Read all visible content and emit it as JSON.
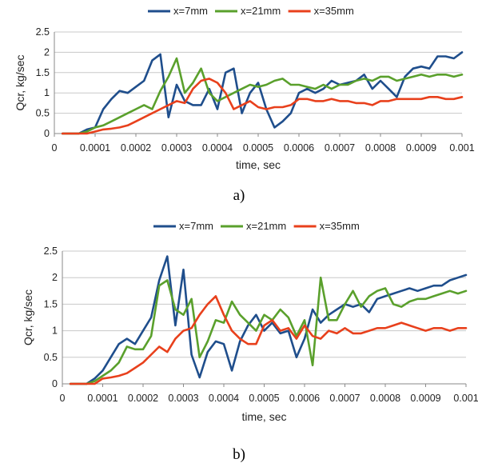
{
  "chart_data": [
    {
      "type": "line",
      "panel_label": "a)",
      "xlabel": "time, sec",
      "ylabel": "Qcr, kg/sec",
      "xlim": [
        0,
        0.001
      ],
      "ylim": [
        0,
        2.5
      ],
      "xticks": [
        "0",
        "0.0001",
        "0.0002",
        "0.0003",
        "0.0004",
        "0.0005",
        "0.0006",
        "0.0007",
        "0.0008",
        "0.0009",
        "0.001"
      ],
      "yticks": [
        "0",
        "0.5",
        "1",
        "1.5",
        "2",
        "2.5"
      ],
      "grid": "horizontal",
      "legend": "top",
      "series": [
        {
          "name": "x=7mm",
          "color": "#1f4e8c",
          "x": [
            2e-05,
            4e-05,
            6e-05,
            8e-05,
            0.0001,
            0.00012,
            0.00014,
            0.00016,
            0.00018,
            0.0002,
            0.00022,
            0.00024,
            0.00026,
            0.00028,
            0.0003,
            0.00032,
            0.00034,
            0.00036,
            0.00038,
            0.0004,
            0.00042,
            0.00044,
            0.00046,
            0.00048,
            0.0005,
            0.00052,
            0.00054,
            0.00056,
            0.00058,
            0.0006,
            0.00062,
            0.00064,
            0.00066,
            0.00068,
            0.0007,
            0.00072,
            0.00074,
            0.00076,
            0.00078,
            0.0008,
            0.00082,
            0.00084,
            0.00086,
            0.00088,
            0.0009,
            0.00092,
            0.00094,
            0.00096,
            0.00098,
            0.001
          ],
          "y": [
            0,
            0,
            0,
            0.1,
            0.15,
            0.6,
            0.85,
            1.05,
            1.0,
            1.15,
            1.3,
            1.8,
            1.95,
            0.4,
            1.2,
            0.8,
            0.7,
            0.7,
            1.1,
            0.6,
            1.5,
            1.6,
            0.5,
            1.0,
            1.25,
            0.6,
            0.15,
            0.3,
            0.5,
            1.0,
            1.1,
            1.0,
            1.1,
            1.3,
            1.2,
            1.25,
            1.3,
            1.45,
            1.1,
            1.3,
            1.1,
            0.9,
            1.4,
            1.6,
            1.65,
            1.6,
            1.9,
            1.9,
            1.85,
            2.0
          ]
        },
        {
          "name": "x=21mm",
          "color": "#5aa02c",
          "x": [
            2e-05,
            4e-05,
            6e-05,
            8e-05,
            0.0001,
            0.00012,
            0.00014,
            0.00016,
            0.00018,
            0.0002,
            0.00022,
            0.00024,
            0.00026,
            0.00028,
            0.0003,
            0.00032,
            0.00034,
            0.00036,
            0.00038,
            0.0004,
            0.00042,
            0.00044,
            0.00046,
            0.00048,
            0.0005,
            0.00052,
            0.00054,
            0.00056,
            0.00058,
            0.0006,
            0.00062,
            0.00064,
            0.00066,
            0.00068,
            0.0007,
            0.00072,
            0.00074,
            0.00076,
            0.00078,
            0.0008,
            0.00082,
            0.00084,
            0.00086,
            0.00088,
            0.0009,
            0.00092,
            0.00094,
            0.00096,
            0.00098,
            0.001
          ],
          "y": [
            0,
            0,
            0,
            0.05,
            0.15,
            0.2,
            0.3,
            0.4,
            0.5,
            0.6,
            0.7,
            0.6,
            1.05,
            1.4,
            1.85,
            1.0,
            1.25,
            1.6,
            1.0,
            0.8,
            0.9,
            1.0,
            1.1,
            1.2,
            1.15,
            1.2,
            1.3,
            1.35,
            1.2,
            1.2,
            1.15,
            1.1,
            1.2,
            1.1,
            1.2,
            1.2,
            1.3,
            1.35,
            1.3,
            1.4,
            1.4,
            1.3,
            1.35,
            1.4,
            1.45,
            1.4,
            1.45,
            1.45,
            1.4,
            1.45
          ]
        },
        {
          "name": "x=35mm",
          "color": "#e8401c",
          "x": [
            2e-05,
            4e-05,
            6e-05,
            8e-05,
            0.0001,
            0.00012,
            0.00014,
            0.00016,
            0.00018,
            0.0002,
            0.00022,
            0.00024,
            0.00026,
            0.00028,
            0.0003,
            0.00032,
            0.00034,
            0.00036,
            0.00038,
            0.0004,
            0.00042,
            0.00044,
            0.00046,
            0.00048,
            0.0005,
            0.00052,
            0.00054,
            0.00056,
            0.00058,
            0.0006,
            0.00062,
            0.00064,
            0.00066,
            0.00068,
            0.0007,
            0.00072,
            0.00074,
            0.00076,
            0.00078,
            0.0008,
            0.00082,
            0.00084,
            0.00086,
            0.00088,
            0.0009,
            0.00092,
            0.00094,
            0.00096,
            0.00098,
            0.001
          ],
          "y": [
            0,
            0,
            0,
            0,
            0.05,
            0.1,
            0.12,
            0.15,
            0.2,
            0.3,
            0.4,
            0.5,
            0.6,
            0.7,
            0.8,
            0.75,
            1.1,
            1.3,
            1.35,
            1.25,
            1.0,
            0.6,
            0.7,
            0.8,
            0.65,
            0.6,
            0.65,
            0.65,
            0.7,
            0.85,
            0.85,
            0.8,
            0.8,
            0.85,
            0.8,
            0.8,
            0.75,
            0.75,
            0.7,
            0.8,
            0.8,
            0.85,
            0.85,
            0.85,
            0.85,
            0.9,
            0.9,
            0.85,
            0.85,
            0.9
          ]
        }
      ]
    },
    {
      "type": "line",
      "panel_label": "b)",
      "xlabel": "time, sec",
      "ylabel": "Qcr, kg/sec",
      "xlim": [
        0,
        0.001
      ],
      "ylim": [
        0,
        2.5
      ],
      "xticks": [
        "0",
        "0.0001",
        "0.0002",
        "0.0003",
        "0.0004",
        "0.0005",
        "0.0006",
        "0.0007",
        "0.0008",
        "0.0009",
        "0.001"
      ],
      "yticks": [
        "0",
        "0.5",
        "1",
        "1.5",
        "2",
        "2.5"
      ],
      "grid": "horizontal",
      "legend": "top",
      "series": [
        {
          "name": "x=7mm",
          "color": "#1f4e8c",
          "x": [
            2e-05,
            4e-05,
            6e-05,
            8e-05,
            0.0001,
            0.00012,
            0.00014,
            0.00016,
            0.00018,
            0.0002,
            0.00022,
            0.00024,
            0.00026,
            0.00028,
            0.0003,
            0.00032,
            0.00034,
            0.00036,
            0.00038,
            0.0004,
            0.00042,
            0.00044,
            0.00046,
            0.00048,
            0.0005,
            0.00052,
            0.00054,
            0.00056,
            0.00058,
            0.0006,
            0.00062,
            0.00064,
            0.00066,
            0.00068,
            0.0007,
            0.00072,
            0.00074,
            0.00076,
            0.00078,
            0.0008,
            0.00082,
            0.00084,
            0.00086,
            0.00088,
            0.0009,
            0.00092,
            0.00094,
            0.00096,
            0.00098,
            0.001
          ],
          "y": [
            0,
            0,
            0,
            0.1,
            0.25,
            0.5,
            0.75,
            0.85,
            0.75,
            1.0,
            1.25,
            1.95,
            2.4,
            1.1,
            2.15,
            0.55,
            0.12,
            0.6,
            0.8,
            0.75,
            0.25,
            0.8,
            1.1,
            1.3,
            1.0,
            1.15,
            0.95,
            1.0,
            0.5,
            0.85,
            1.4,
            1.15,
            1.3,
            1.4,
            1.5,
            1.45,
            1.5,
            1.35,
            1.6,
            1.65,
            1.7,
            1.75,
            1.8,
            1.75,
            1.8,
            1.85,
            1.85,
            1.95,
            2.0,
            2.05
          ]
        },
        {
          "name": "x=21mm",
          "color": "#5aa02c",
          "x": [
            2e-05,
            4e-05,
            6e-05,
            8e-05,
            0.0001,
            0.00012,
            0.00014,
            0.00016,
            0.00018,
            0.0002,
            0.00022,
            0.00024,
            0.00026,
            0.00028,
            0.0003,
            0.00032,
            0.00034,
            0.00036,
            0.00038,
            0.0004,
            0.00042,
            0.00044,
            0.00046,
            0.00048,
            0.0005,
            0.00052,
            0.00054,
            0.00056,
            0.00058,
            0.0006,
            0.00062,
            0.00064,
            0.00066,
            0.00068,
            0.0007,
            0.00072,
            0.00074,
            0.00076,
            0.00078,
            0.0008,
            0.00082,
            0.00084,
            0.00086,
            0.00088,
            0.0009,
            0.00092,
            0.00094,
            0.00096,
            0.00098,
            0.001
          ],
          "y": [
            0,
            0,
            0,
            0.05,
            0.15,
            0.25,
            0.4,
            0.7,
            0.65,
            0.65,
            0.9,
            1.85,
            1.95,
            1.4,
            1.3,
            1.6,
            0.5,
            0.8,
            1.2,
            1.15,
            1.55,
            1.3,
            1.15,
            1.0,
            1.3,
            1.2,
            1.4,
            1.25,
            0.9,
            1.2,
            0.35,
            2.0,
            1.2,
            1.2,
            1.5,
            1.75,
            1.45,
            1.65,
            1.75,
            1.8,
            1.5,
            1.45,
            1.55,
            1.6,
            1.6,
            1.65,
            1.7,
            1.75,
            1.7,
            1.75
          ]
        },
        {
          "name": "x=35mm",
          "color": "#e8401c",
          "x": [
            2e-05,
            4e-05,
            6e-05,
            8e-05,
            0.0001,
            0.00012,
            0.00014,
            0.00016,
            0.00018,
            0.0002,
            0.00022,
            0.00024,
            0.00026,
            0.00028,
            0.0003,
            0.00032,
            0.00034,
            0.00036,
            0.00038,
            0.0004,
            0.00042,
            0.00044,
            0.00046,
            0.00048,
            0.0005,
            0.00052,
            0.00054,
            0.00056,
            0.00058,
            0.0006,
            0.00062,
            0.00064,
            0.00066,
            0.00068,
            0.0007,
            0.00072,
            0.00074,
            0.00076,
            0.00078,
            0.0008,
            0.00082,
            0.00084,
            0.00086,
            0.00088,
            0.0009,
            0.00092,
            0.00094,
            0.00096,
            0.00098,
            0.001
          ],
          "y": [
            0,
            0,
            0,
            0,
            0.1,
            0.12,
            0.15,
            0.2,
            0.3,
            0.4,
            0.55,
            0.7,
            0.6,
            0.85,
            1.0,
            1.05,
            1.3,
            1.5,
            1.65,
            1.3,
            1.0,
            0.85,
            0.75,
            0.75,
            1.1,
            1.2,
            1.0,
            1.05,
            0.85,
            1.1,
            0.9,
            0.85,
            1.0,
            0.95,
            1.05,
            0.95,
            0.95,
            1.0,
            1.05,
            1.05,
            1.1,
            1.15,
            1.1,
            1.05,
            1.0,
            1.05,
            1.05,
            1.0,
            1.05,
            1.05
          ]
        }
      ]
    }
  ]
}
